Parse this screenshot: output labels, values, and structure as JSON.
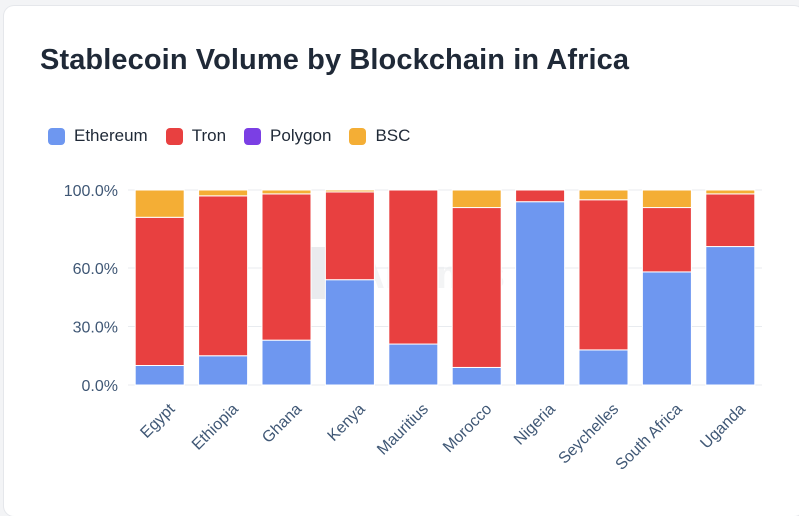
{
  "title": "Stablecoin Volume by Blockchain in Africa",
  "watermark": "Artemis",
  "legend": [
    {
      "name": "Ethereum",
      "color": "#6e97f0"
    },
    {
      "name": "Tron",
      "color": "#e84040"
    },
    {
      "name": "Polygon",
      "color": "#7b3fe4"
    },
    {
      "name": "BSC",
      "color": "#f4ae35"
    }
  ],
  "chart_data": {
    "type": "bar",
    "stacked": true,
    "categories": [
      "Egypt",
      "Ethiopia",
      "Ghana",
      "Kenya",
      "Mauritius",
      "Morocco",
      "Nigeria",
      "Seychelles",
      "South Africa",
      "Uganda"
    ],
    "series": [
      {
        "name": "Ethereum",
        "color": "#6e97f0",
        "values": [
          10,
          15,
          23,
          54,
          21,
          9,
          94,
          18,
          58,
          71
        ]
      },
      {
        "name": "Tron",
        "color": "#e84040",
        "values": [
          76,
          82,
          75,
          45,
          79,
          82,
          6,
          77,
          33,
          27
        ]
      },
      {
        "name": "Polygon",
        "color": "#7b3fe4",
        "values": [
          0,
          0,
          0,
          0,
          0,
          0,
          0,
          0,
          0,
          0
        ]
      },
      {
        "name": "BSC",
        "color": "#f4ae35",
        "values": [
          14,
          3,
          2,
          1,
          0,
          9,
          0,
          5,
          9,
          2
        ]
      }
    ],
    "ytick_labels": [
      "0.0%",
      "30.0%",
      "60.0%",
      "100.0%"
    ],
    "ytick_values": [
      0,
      30,
      60,
      100
    ],
    "ylim": [
      0,
      100
    ],
    "grid": true,
    "legend_position": "top-left"
  }
}
